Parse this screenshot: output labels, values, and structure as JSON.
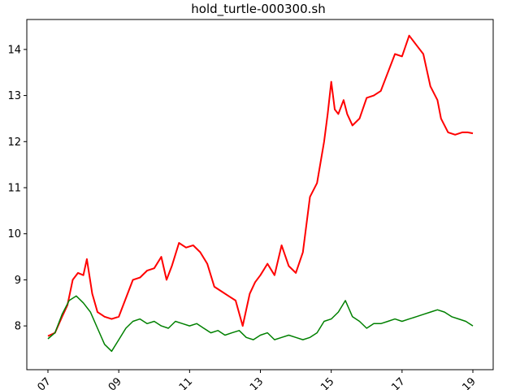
{
  "chart_data": {
    "type": "line",
    "title": "hold_turtle-000300.sh",
    "xlabel": "",
    "ylabel": "",
    "x_ticks": [
      "07",
      "09",
      "11",
      "13",
      "15",
      "17",
      "19"
    ],
    "x_range": [
      2007,
      2019
    ],
    "y_ticks": [
      "8",
      "9",
      "10",
      "11",
      "12",
      "13",
      "14"
    ],
    "y_range": [
      7.05,
      14.65
    ],
    "grid": false,
    "legend": "none",
    "series": [
      {
        "color": "#ff0000",
        "x": [
          2007.0,
          2007.2,
          2007.4,
          2007.55,
          2007.7,
          2007.85,
          2008.0,
          2008.1,
          2008.25,
          2008.4,
          2008.6,
          2008.8,
          2009.0,
          2009.2,
          2009.4,
          2009.6,
          2009.8,
          2010.0,
          2010.2,
          2010.35,
          2010.5,
          2010.7,
          2010.9,
          2011.1,
          2011.3,
          2011.5,
          2011.7,
          2011.9,
          2012.1,
          2012.3,
          2012.5,
          2012.7,
          2012.85,
          2013.0,
          2013.2,
          2013.4,
          2013.6,
          2013.8,
          2014.0,
          2014.2,
          2014.4,
          2014.6,
          2014.8,
          2014.9,
          2015.0,
          2015.1,
          2015.2,
          2015.35,
          2015.45,
          2015.6,
          2015.8,
          2016.0,
          2016.2,
          2016.4,
          2016.6,
          2016.8,
          2017.0,
          2017.2,
          2017.4,
          2017.6,
          2017.8,
          2018.0,
          2018.1,
          2018.3,
          2018.5,
          2018.7,
          2018.85,
          2019.0
        ],
        "values": [
          7.78,
          7.85,
          8.2,
          8.45,
          9.0,
          9.15,
          9.1,
          9.45,
          8.7,
          8.3,
          8.2,
          8.15,
          8.2,
          8.6,
          9.0,
          9.05,
          9.2,
          9.25,
          9.5,
          9.0,
          9.3,
          9.8,
          9.7,
          9.75,
          9.6,
          9.35,
          8.85,
          8.75,
          8.65,
          8.55,
          8.0,
          8.7,
          8.95,
          9.1,
          9.35,
          9.1,
          9.75,
          9.3,
          9.15,
          9.6,
          10.8,
          11.1,
          12.0,
          12.6,
          13.3,
          12.7,
          12.6,
          12.9,
          12.6,
          12.35,
          12.5,
          12.95,
          13.0,
          13.1,
          13.5,
          13.9,
          13.85,
          14.3,
          14.1,
          13.9,
          13.2,
          12.9,
          12.5,
          12.2,
          12.15,
          12.2,
          12.2,
          12.18
        ],
        "note_unused": ""
      },
      {
        "color": "#008000",
        "x": [
          2007.0,
          2007.2,
          2007.4,
          2007.6,
          2007.8,
          2008.0,
          2008.2,
          2008.4,
          2008.6,
          2008.8,
          2009.0,
          2009.2,
          2009.4,
          2009.6,
          2009.8,
          2010.0,
          2010.2,
          2010.4,
          2010.6,
          2010.8,
          2011.0,
          2011.2,
          2011.4,
          2011.6,
          2011.8,
          2012.0,
          2012.2,
          2012.4,
          2012.6,
          2012.8,
          2013.0,
          2013.2,
          2013.4,
          2013.6,
          2013.8,
          2014.0,
          2014.2,
          2014.4,
          2014.6,
          2014.8,
          2015.0,
          2015.2,
          2015.4,
          2015.6,
          2015.8,
          2016.0,
          2016.2,
          2016.4,
          2016.6,
          2016.8,
          2017.0,
          2017.2,
          2017.4,
          2017.6,
          2017.8,
          2018.0,
          2018.2,
          2018.4,
          2018.6,
          2018.8,
          2019.0
        ],
        "values": [
          7.72,
          7.85,
          8.25,
          8.55,
          8.65,
          8.5,
          8.3,
          7.95,
          7.6,
          7.45,
          7.7,
          7.95,
          8.1,
          8.15,
          8.05,
          8.1,
          8.0,
          7.95,
          8.1,
          8.05,
          8.0,
          8.05,
          7.95,
          7.85,
          7.9,
          7.8,
          7.85,
          7.9,
          7.75,
          7.7,
          7.8,
          7.85,
          7.7,
          7.75,
          7.8,
          7.75,
          7.7,
          7.75,
          7.85,
          8.1,
          8.15,
          8.3,
          8.55,
          8.2,
          8.1,
          7.95,
          8.05,
          8.05,
          8.1,
          8.15,
          8.1,
          8.15,
          8.2,
          8.25,
          8.3,
          8.35,
          8.3,
          8.2,
          8.15,
          8.1,
          8.0
        ]
      }
    ]
  }
}
